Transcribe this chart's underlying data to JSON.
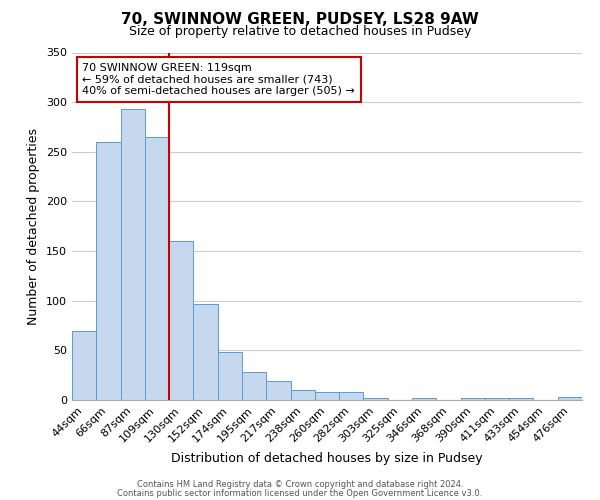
{
  "title": "70, SWINNOW GREEN, PUDSEY, LS28 9AW",
  "subtitle": "Size of property relative to detached houses in Pudsey",
  "xlabel": "Distribution of detached houses by size in Pudsey",
  "ylabel": "Number of detached properties",
  "categories": [
    "44sqm",
    "66sqm",
    "87sqm",
    "109sqm",
    "130sqm",
    "152sqm",
    "174sqm",
    "195sqm",
    "217sqm",
    "238sqm",
    "260sqm",
    "282sqm",
    "303sqm",
    "325sqm",
    "346sqm",
    "368sqm",
    "390sqm",
    "411sqm",
    "433sqm",
    "454sqm",
    "476sqm"
  ],
  "values": [
    70,
    260,
    293,
    265,
    160,
    97,
    48,
    28,
    19,
    10,
    8,
    8,
    2,
    0,
    2,
    0,
    2,
    2,
    2,
    0,
    3
  ],
  "bar_color": "#c5d8ed",
  "bar_edge_color": "#5b9bd5",
  "vline_x_index": 3,
  "vline_color": "#cc0000",
  "annotation_text": "70 SWINNOW GREEN: 119sqm\n← 59% of detached houses are smaller (743)\n40% of semi-detached houses are larger (505) →",
  "annotation_box_color": "#ffffff",
  "annotation_box_edge_color": "#cc0000",
  "ylim": [
    0,
    350
  ],
  "yticks": [
    0,
    50,
    100,
    150,
    200,
    250,
    300,
    350
  ],
  "footer_line1": "Contains HM Land Registry data © Crown copyright and database right 2024.",
  "footer_line2": "Contains public sector information licensed under the Open Government Licence v3.0.",
  "background_color": "#ffffff",
  "grid_color": "#cccccc",
  "title_fontsize": 11,
  "subtitle_fontsize": 9,
  "xlabel_fontsize": 9,
  "ylabel_fontsize": 9,
  "tick_fontsize": 8,
  "annot_fontsize": 8
}
